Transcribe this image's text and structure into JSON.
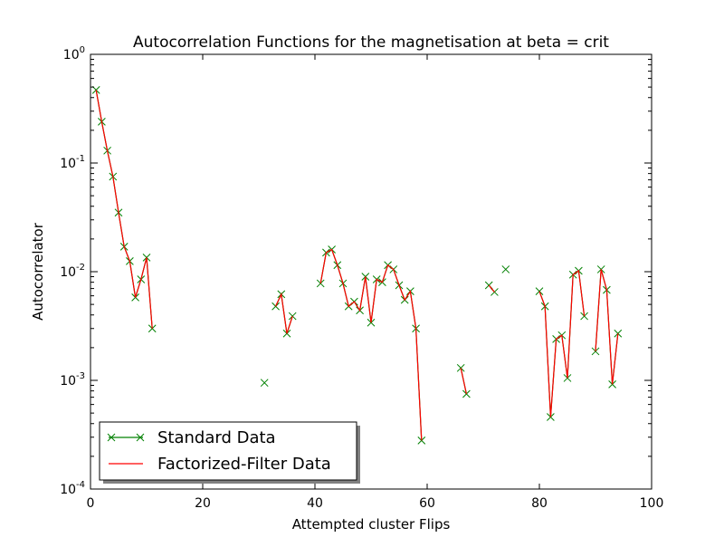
{
  "chart_data": {
    "type": "line",
    "title": "Autocorrelation Functions for the magnetisation at beta = crit",
    "xlabel": "Attempted cluster Flips",
    "ylabel": "Autocorrelator",
    "xlim": [
      0,
      100
    ],
    "ylim": [
      0.0001,
      1
    ],
    "y_scale": "log",
    "x_ticks": [
      0,
      20,
      40,
      60,
      80,
      100
    ],
    "y_ticks": [
      {
        "base": "10",
        "exp": "0",
        "value": 1
      },
      {
        "base": "10",
        "exp": "-1",
        "value": 0.1
      },
      {
        "base": "10",
        "exp": "-2",
        "value": 0.01
      },
      {
        "base": "10",
        "exp": "-3",
        "value": 0.001
      },
      {
        "base": "10",
        "exp": "-4",
        "value": 0.0001
      }
    ],
    "grid": false,
    "legend_position": "lower-left",
    "series": [
      {
        "name": "Standard Data",
        "color": "#008000",
        "marker": "x",
        "x": [
          1,
          2,
          3,
          4,
          5,
          6,
          7,
          8,
          9,
          10,
          11,
          31,
          33,
          34,
          35,
          36,
          41,
          42,
          43,
          44,
          45,
          46,
          47,
          48,
          49,
          50,
          51,
          52,
          53,
          54,
          55,
          56,
          57,
          58,
          59,
          66,
          67,
          71,
          72,
          74,
          80,
          81,
          82,
          83,
          84,
          85,
          86,
          87,
          88,
          90,
          91,
          92,
          93,
          94
        ],
        "y": [
          0.47,
          0.24,
          0.13,
          0.075,
          0.035,
          0.017,
          0.0125,
          0.0058,
          0.0085,
          0.0135,
          0.003,
          0.00095,
          0.0048,
          0.0062,
          0.0027,
          0.0039,
          0.0078,
          0.015,
          0.016,
          0.0115,
          0.0078,
          0.0048,
          0.0053,
          0.0044,
          0.009,
          0.0034,
          0.0085,
          0.008,
          0.0115,
          0.0105,
          0.0075,
          0.0055,
          0.0066,
          0.003,
          0.00028,
          0.0013,
          0.00075,
          0.0075,
          0.0065,
          0.0105,
          0.0066,
          0.0048,
          0.00046,
          0.0024,
          0.0026,
          0.00105,
          0.0094,
          0.0102,
          0.0039,
          0.00185,
          0.0105,
          0.0068,
          0.00092,
          0.0027
        ]
      },
      {
        "name": "Factorized-Filter Data",
        "color": "#ff0000",
        "marker": "",
        "x": [
          1,
          2,
          3,
          4,
          5,
          6,
          7,
          8,
          9,
          10,
          11,
          31,
          33,
          34,
          35,
          36,
          41,
          42,
          43,
          44,
          45,
          46,
          47,
          48,
          49,
          50,
          51,
          52,
          53,
          54,
          55,
          56,
          57,
          58,
          59,
          66,
          67,
          71,
          72,
          74,
          80,
          81,
          82,
          83,
          84,
          85,
          86,
          87,
          88,
          90,
          91,
          92,
          93,
          94
        ],
        "y": [
          0.47,
          0.24,
          0.13,
          0.075,
          0.035,
          0.017,
          0.0125,
          0.0058,
          0.0085,
          0.0135,
          0.003,
          0.00095,
          0.0048,
          0.0062,
          0.0027,
          0.0039,
          0.0078,
          0.015,
          0.016,
          0.0115,
          0.0078,
          0.0048,
          0.0053,
          0.0044,
          0.009,
          0.0034,
          0.0085,
          0.008,
          0.0115,
          0.0105,
          0.0075,
          0.0055,
          0.0066,
          0.003,
          0.00028,
          0.0013,
          0.00075,
          0.0075,
          0.0065,
          0.0105,
          0.0066,
          0.0048,
          0.00046,
          0.0024,
          0.0026,
          0.00105,
          0.0094,
          0.0102,
          0.0039,
          0.00185,
          0.0105,
          0.0068,
          0.00092,
          0.0027
        ]
      }
    ]
  }
}
